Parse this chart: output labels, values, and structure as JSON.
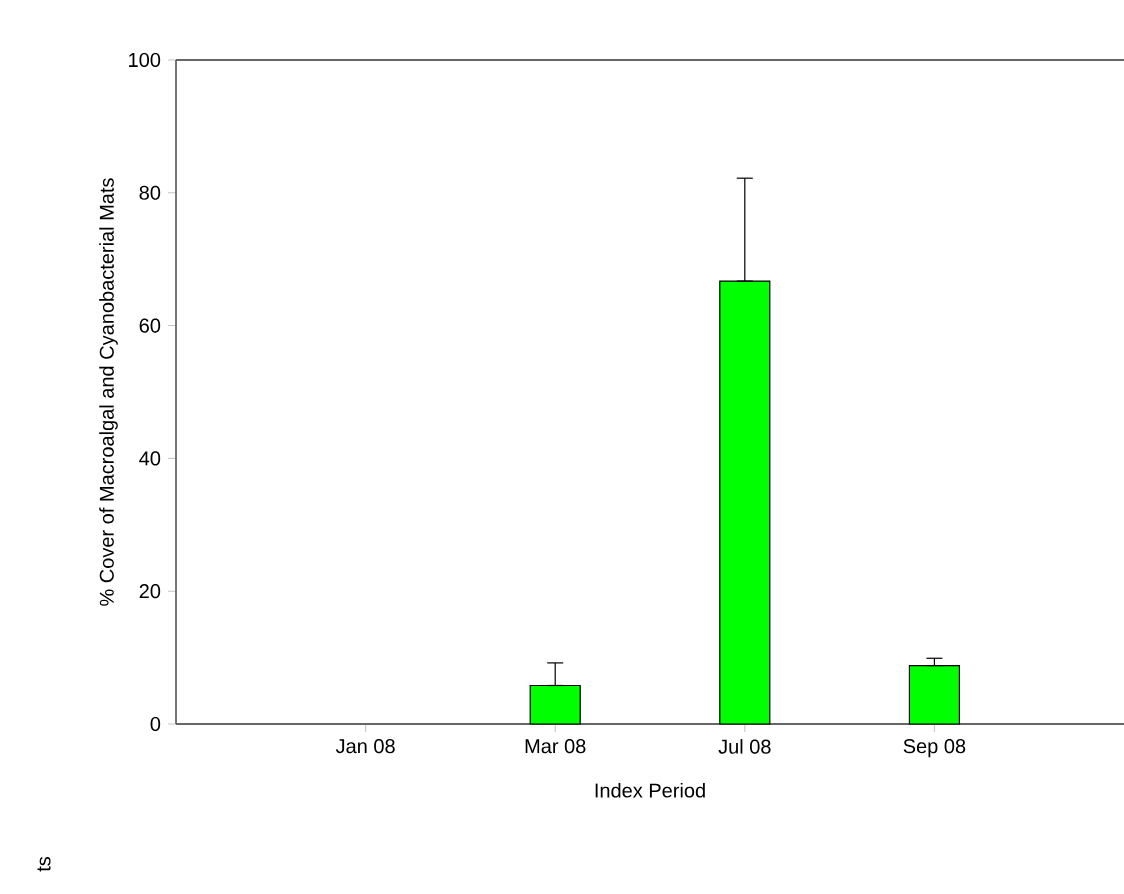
{
  "chart_data": {
    "type": "bar",
    "xlabel": "Index Period",
    "ylabel": "% Cover of Macroalgal and Cyanobacterial Mats",
    "categories": [
      "Jan 08",
      "Mar 08",
      "Jul 08",
      "Sep 08"
    ],
    "values": [
      null,
      5.8,
      66.7,
      8.8
    ],
    "errors": [
      null,
      [
        5.8,
        9.2
      ],
      [
        66.7,
        82.2
      ],
      [
        8.8,
        9.9
      ]
    ],
    "color": "#00ff00",
    "ylim": [
      0,
      100
    ],
    "yticks": [
      0,
      20,
      40,
      60,
      80,
      100
    ],
    "annotations": [
      "ts"
    ]
  }
}
